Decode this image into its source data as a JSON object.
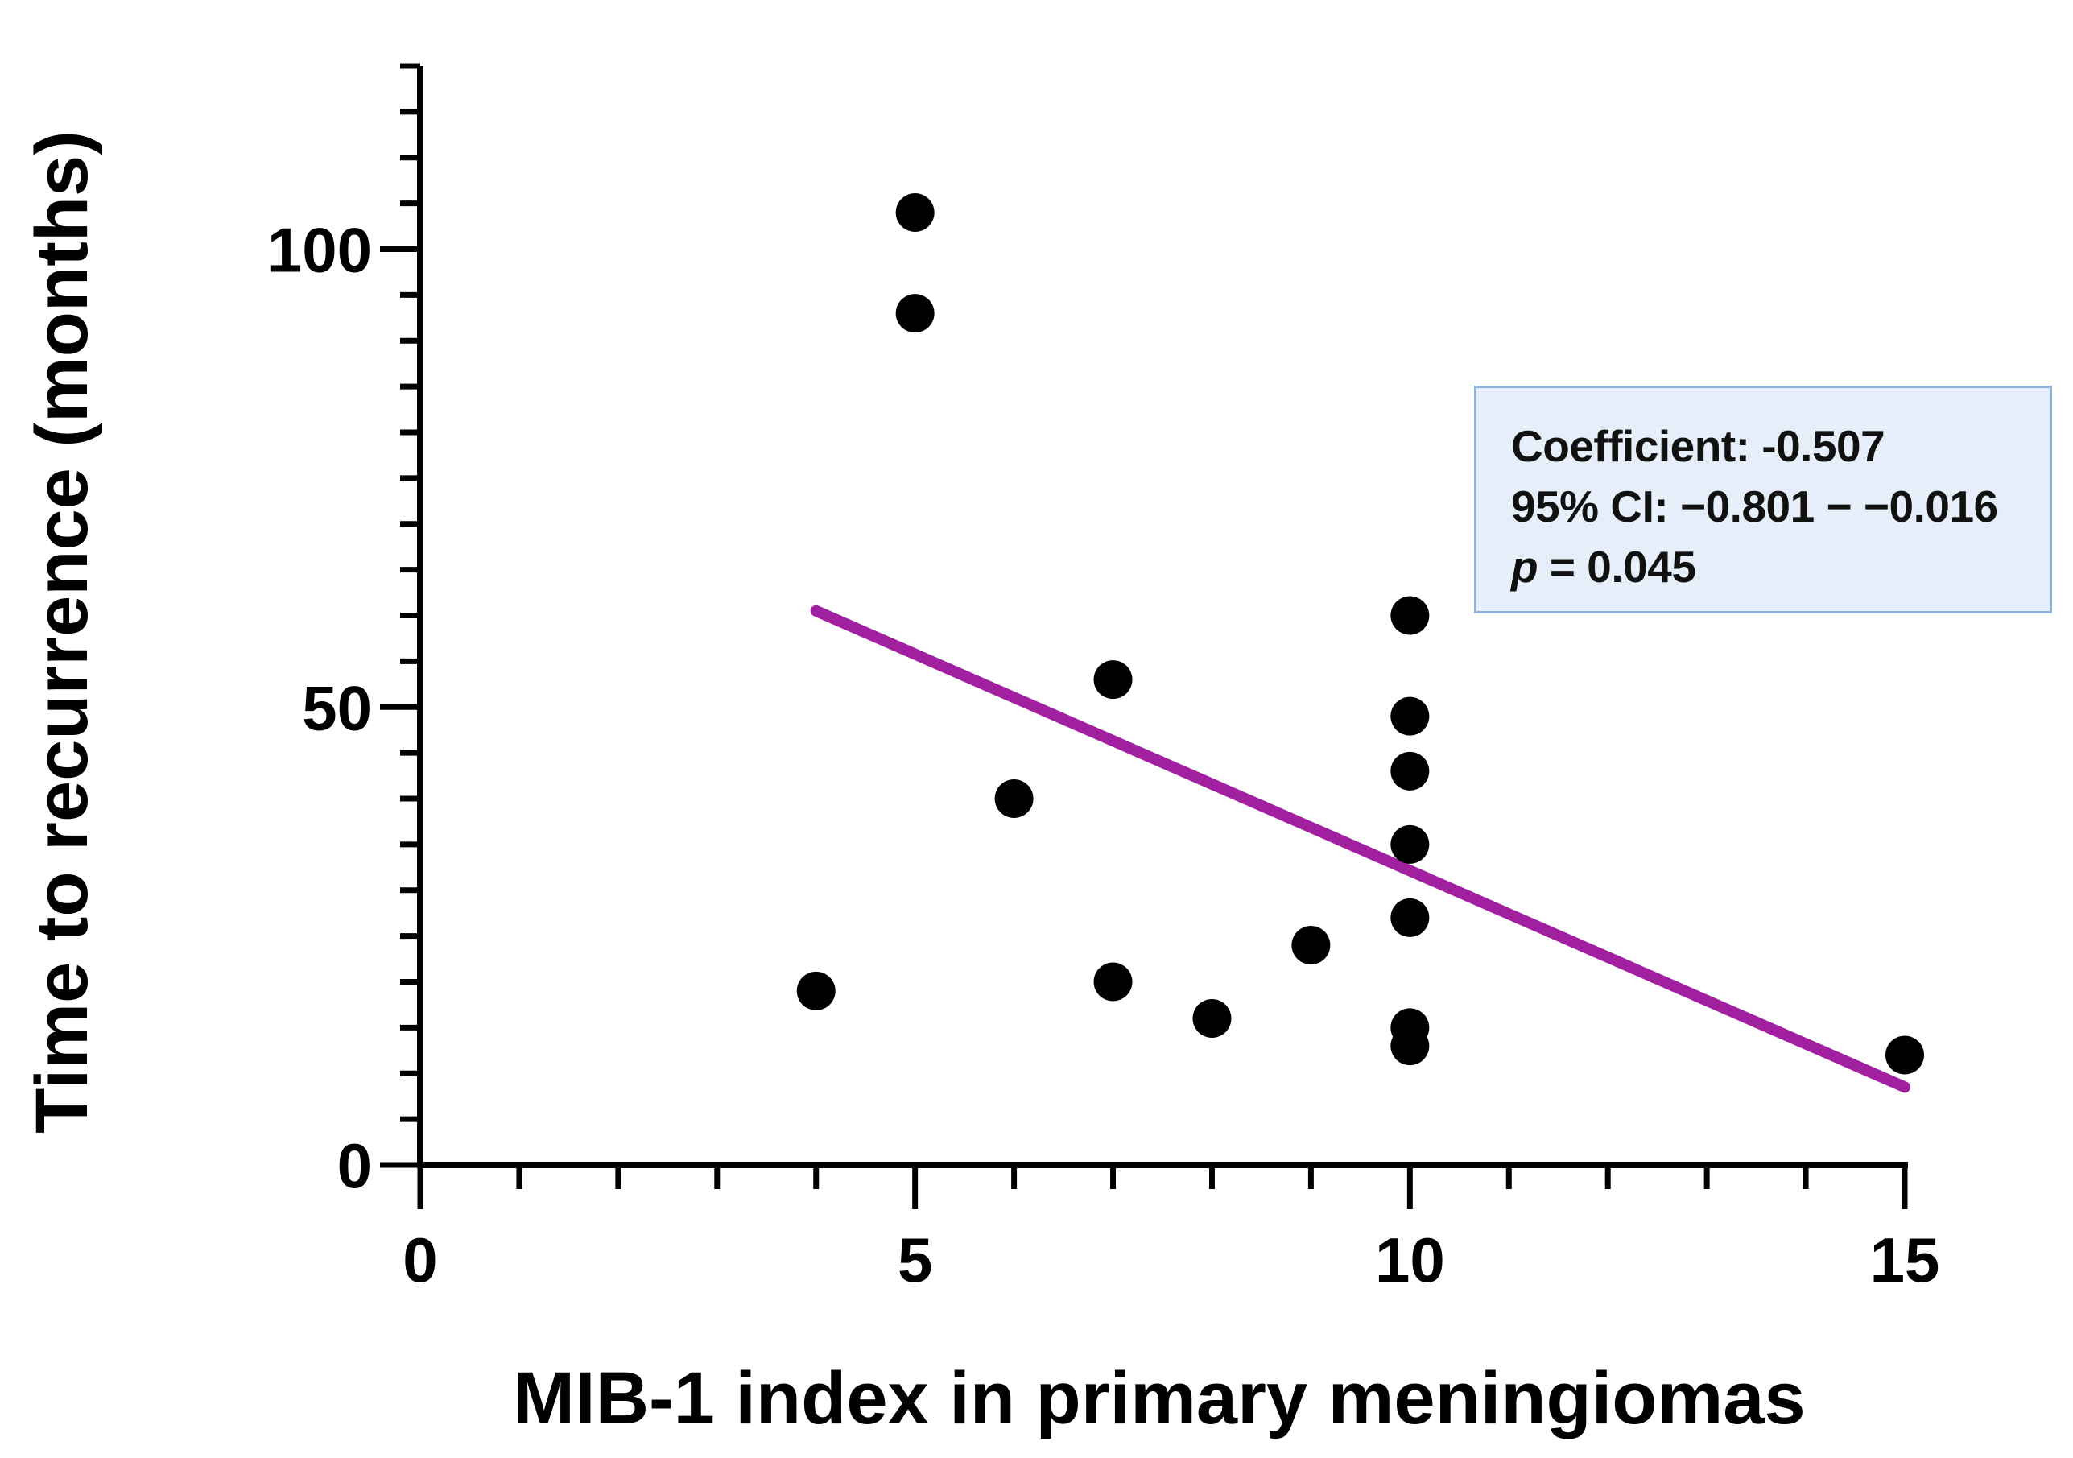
{
  "chart_data": {
    "type": "scatter",
    "title": "",
    "xlabel": "MIB-1 index in primary meningiomas",
    "ylabel": "Time to recurrence (months)",
    "xlim": [
      0,
      15
    ],
    "ylim": [
      0,
      120
    ],
    "x_ticks": [
      "0",
      "5",
      "10",
      "15"
    ],
    "y_ticks": [
      "0",
      "50",
      "100"
    ],
    "points": [
      {
        "x": 4,
        "y": 19
      },
      {
        "x": 5,
        "y": 104
      },
      {
        "x": 5,
        "y": 93
      },
      {
        "x": 6,
        "y": 40
      },
      {
        "x": 7,
        "y": 53
      },
      {
        "x": 7,
        "y": 20
      },
      {
        "x": 8,
        "y": 16
      },
      {
        "x": 9,
        "y": 24
      },
      {
        "x": 10,
        "y": 60
      },
      {
        "x": 10,
        "y": 49
      },
      {
        "x": 10,
        "y": 43
      },
      {
        "x": 10,
        "y": 35
      },
      {
        "x": 10,
        "y": 27
      },
      {
        "x": 10,
        "y": 15
      },
      {
        "x": 10,
        "y": 13
      },
      {
        "x": 15,
        "y": 12
      }
    ],
    "regression_line": {
      "x": [
        4,
        15
      ],
      "y": [
        60.5,
        8.5
      ],
      "color": "#a020a0"
    },
    "point_color": "#000000",
    "annotation": {
      "coefficient": "Coefficient: -0.507",
      "ci": "95% CI: −0.801 − −0.016",
      "p_symbol": "p",
      "p_value": " = 0.045",
      "bg_color": "#e6eff9",
      "border_color": "#8fb0da"
    }
  }
}
